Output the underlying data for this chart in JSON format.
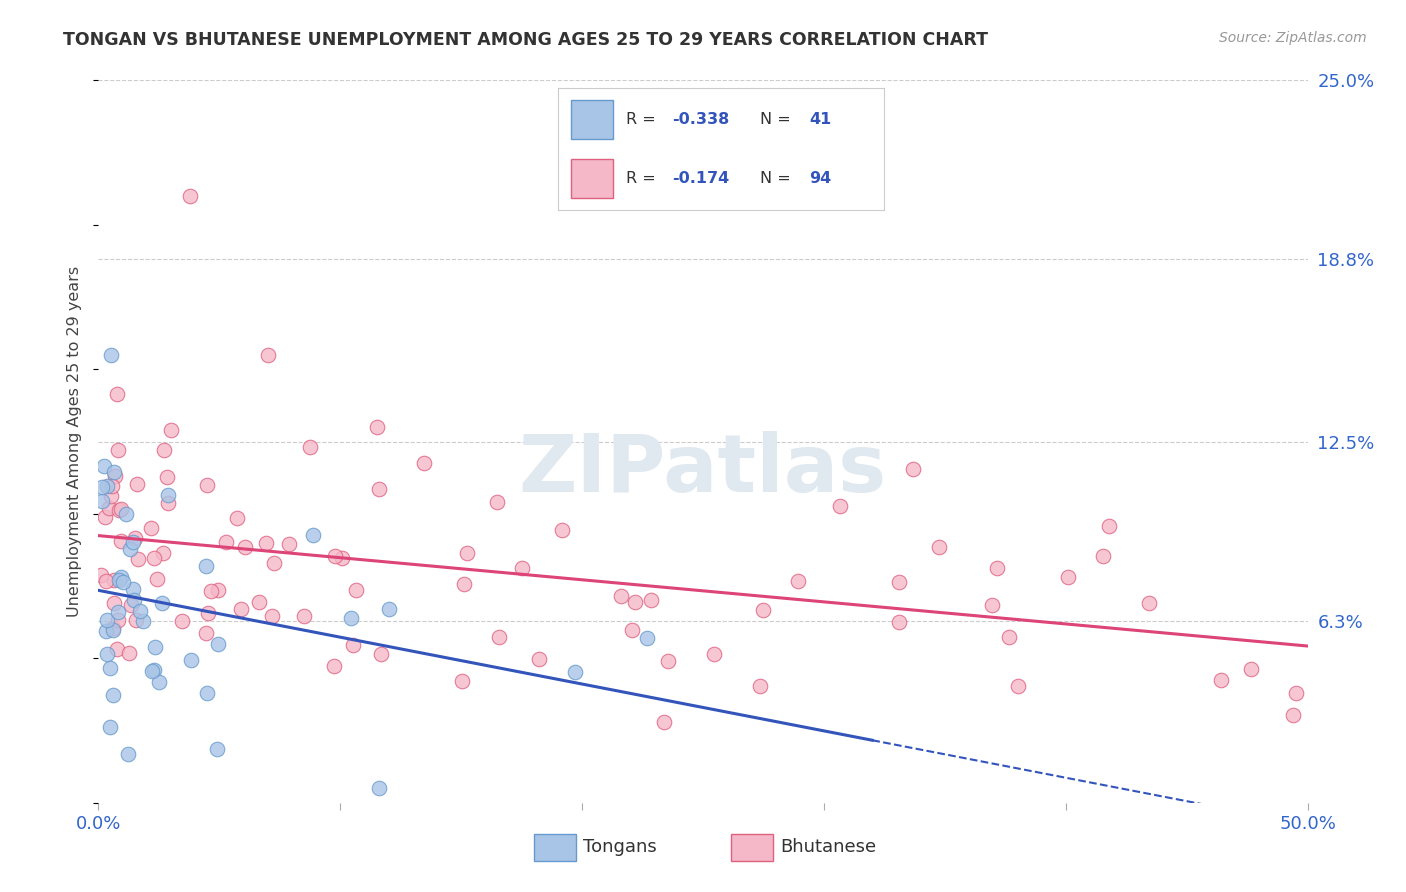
{
  "title": "TONGAN VS BHUTANESE UNEMPLOYMENT AMONG AGES 25 TO 29 YEARS CORRELATION CHART",
  "source": "Source: ZipAtlas.com",
  "ylabel": "Unemployment Among Ages 25 to 29 years",
  "xlim": [
    0.0,
    0.5
  ],
  "ylim": [
    0.0,
    0.25
  ],
  "ytick_labels_right": [
    "25.0%",
    "18.8%",
    "12.5%",
    "6.3%"
  ],
  "ytick_positions_right": [
    0.25,
    0.188,
    0.125,
    0.063
  ],
  "grid_color": "#cccccc",
  "background_color": "#ffffff",
  "tongans_face_color": "#a8c4e6",
  "tongans_edge_color": "#6699cc",
  "bhutanese_face_color": "#f5b8c8",
  "bhutanese_edge_color": "#e06080",
  "tongans_line_color": "#3355bb",
  "bhutanese_line_color": "#dd4477",
  "watermark": "ZIPatlas"
}
